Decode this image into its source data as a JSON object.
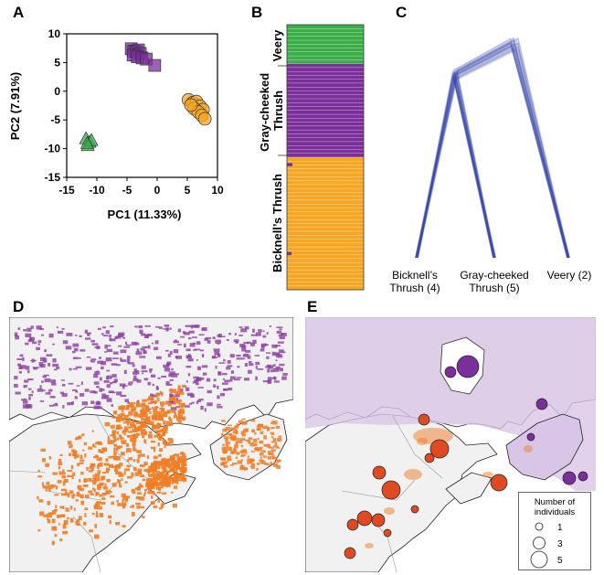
{
  "panels": {
    "a": "A",
    "b": "B",
    "c": "C",
    "d": "D",
    "e": "E"
  },
  "chart_data": [
    {
      "panel": "A",
      "type": "scatter",
      "xlabel": "PC1 (11.33%)",
      "ylabel": "PC2 (7.91%)",
      "xlim": [
        -15,
        10
      ],
      "ylim": [
        -15,
        10
      ],
      "xticks": [
        "-15",
        "-10",
        "-5",
        "0",
        "5",
        "10"
      ],
      "yticks": [
        "10",
        "5",
        "0",
        "-5",
        "-10",
        "-15"
      ],
      "series": [
        {
          "marker": "triangle",
          "color": "#3cae49",
          "x": [
            -11.8,
            -11.2,
            -11.5,
            -10.9,
            -11.6
          ],
          "y": [
            -8.2,
            -8.8,
            -9.4,
            -8.5,
            -9.0
          ]
        },
        {
          "marker": "square",
          "color": "#7b2f9b",
          "x": [
            -4.3,
            -3.9,
            -3.5,
            -3.1,
            -2.8,
            -4.0,
            -3.3,
            -2.5,
            -1.8,
            -0.4
          ],
          "y": [
            7.4,
            7.0,
            6.9,
            7.2,
            6.6,
            6.3,
            6.0,
            5.8,
            5.6,
            4.5
          ]
        },
        {
          "marker": "circle",
          "color": "#f5a623",
          "x": [
            5.2,
            5.9,
            6.5,
            7.1,
            7.6,
            6.1,
            6.8,
            7.4,
            5.6,
            7.9
          ],
          "y": [
            -1.5,
            -2.0,
            -1.8,
            -2.6,
            -3.2,
            -3.0,
            -3.6,
            -4.2,
            -2.4,
            -4.8
          ]
        }
      ]
    },
    {
      "panel": "B",
      "type": "bar",
      "groups": [
        {
          "label": "Veery",
          "color": "#3cae49",
          "rows": 10
        },
        {
          "label": "Gray-cheeked Thrush",
          "color": "#7b2f9b",
          "rows": 24
        },
        {
          "label": "Bicknell’s Thrush",
          "color": "#f5a623",
          "rows": 34
        }
      ]
    },
    {
      "panel": "C",
      "type": "tree",
      "tips": [
        {
          "label": "Bicknell’s Thrush (4)"
        },
        {
          "label": "Gray-cheeked Thrush (5)"
        },
        {
          "label": "Veery (2)"
        }
      ]
    }
  ],
  "legend_e": {
    "title": "Number of individuals",
    "entries": [
      {
        "label": "1",
        "n": 1
      },
      {
        "label": "3",
        "n": 3
      },
      {
        "label": "5",
        "n": 5
      }
    ]
  },
  "colors": {
    "veery": "#3cae49",
    "gct": "#7b2f9b",
    "bt": "#f5a623",
    "map_bt": "#f07e26",
    "map_gct": "#8e3fa3",
    "range_gct": "#d9c6e6",
    "land": "#f1f1f1",
    "tree": "#3a46b0",
    "bubble": "#e04a22"
  }
}
